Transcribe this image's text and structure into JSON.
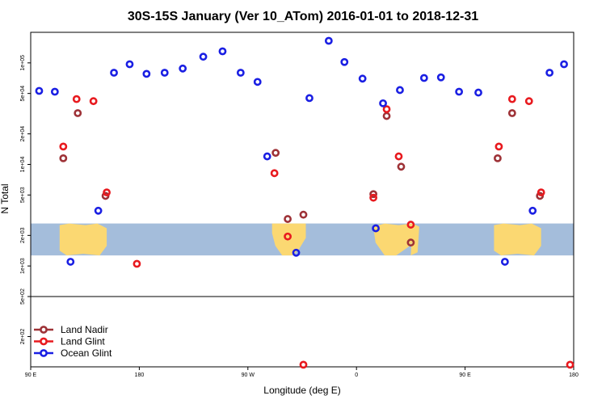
{
  "chart_data": {
    "type": "scatter",
    "title": "30S-15S January (Ver 10_ATom)   2016-01-01 to 2018-12-31",
    "xlabel": "Longitude (deg E)",
    "ylabel": "N Total",
    "x_tick_labels": [
      "90 E",
      "180",
      "90 W",
      "0",
      "90 E",
      "180"
    ],
    "x_tick_values": [
      90,
      180,
      270,
      360,
      450,
      540
    ],
    "xlim": [
      90,
      540
    ],
    "y_scale": "log",
    "main_ylim": [
      500,
      200000
    ],
    "inset_ylim": [
      100,
      500
    ],
    "y_tick_labels": [
      "1e+05",
      "5e+04",
      "2e+04",
      "1e+04",
      "5e+03",
      "2e+03",
      "1e+03",
      "5e+02"
    ],
    "y_tick_values": [
      100000,
      50000,
      20000,
      10000,
      5000,
      2000,
      1000,
      500
    ],
    "inset_y_tick_labels": [
      "2e+02"
    ],
    "inset_y_tick_values": [
      200
    ],
    "map_band": {
      "lat_range": [
        "30S",
        "15S"
      ],
      "ocean_color": "#a4bddb",
      "land_color": "#fbd872"
    },
    "legend_position": "bottom-left",
    "series": [
      {
        "name": "Land Nadir",
        "color": "#9e3237",
        "points": [
          {
            "x": 117,
            "y": 11500
          },
          {
            "x": 129,
            "y": 32000
          },
          {
            "x": 152,
            "y": 4900
          },
          {
            "x": 293,
            "y": 13000
          },
          {
            "x": 303,
            "y": 2900
          },
          {
            "x": 316,
            "y": 3200
          },
          {
            "x": 374,
            "y": 5100
          },
          {
            "x": 385,
            "y": 30000
          },
          {
            "x": 397,
            "y": 9500
          },
          {
            "x": 405,
            "y": 1700
          },
          {
            "x": 477,
            "y": 11500
          },
          {
            "x": 489,
            "y": 32000
          },
          {
            "x": 512,
            "y": 4900
          }
        ]
      },
      {
        "name": "Land Glint",
        "color": "#e81a1f",
        "points": [
          {
            "x": 117,
            "y": 15000
          },
          {
            "x": 128,
            "y": 44000
          },
          {
            "x": 142,
            "y": 42000
          },
          {
            "x": 153,
            "y": 5300
          },
          {
            "x": 178,
            "y": 1050
          },
          {
            "x": 292,
            "y": 8200
          },
          {
            "x": 303,
            "y": 1950
          },
          {
            "x": 316,
            "y": 105
          },
          {
            "x": 374,
            "y": 4700
          },
          {
            "x": 385,
            "y": 35000
          },
          {
            "x": 395,
            "y": 12000
          },
          {
            "x": 405,
            "y": 2550
          },
          {
            "x": 478,
            "y": 15000
          },
          {
            "x": 489,
            "y": 44000
          },
          {
            "x": 503,
            "y": 42000
          },
          {
            "x": 513,
            "y": 5300
          },
          {
            "x": 537,
            "y": 105
          }
        ]
      },
      {
        "name": "Ocean Glint",
        "color": "#1a1fe3",
        "points": [
          {
            "x": 97,
            "y": 53000
          },
          {
            "x": 110,
            "y": 52000
          },
          {
            "x": 123,
            "y": 1100
          },
          {
            "x": 146,
            "y": 3500
          },
          {
            "x": 159,
            "y": 80000
          },
          {
            "x": 172,
            "y": 97000
          },
          {
            "x": 186,
            "y": 78000
          },
          {
            "x": 201,
            "y": 80000
          },
          {
            "x": 216,
            "y": 88000
          },
          {
            "x": 233,
            "y": 115000
          },
          {
            "x": 249,
            "y": 130000
          },
          {
            "x": 264,
            "y": 80000
          },
          {
            "x": 278,
            "y": 65000
          },
          {
            "x": 286,
            "y": 12000
          },
          {
            "x": 310,
            "y": 1350
          },
          {
            "x": 321,
            "y": 45000
          },
          {
            "x": 337,
            "y": 165000
          },
          {
            "x": 350,
            "y": 102000
          },
          {
            "x": 365,
            "y": 70000
          },
          {
            "x": 376,
            "y": 2350
          },
          {
            "x": 382,
            "y": 40000
          },
          {
            "x": 396,
            "y": 54000
          },
          {
            "x": 416,
            "y": 71000
          },
          {
            "x": 430,
            "y": 72000
          },
          {
            "x": 445,
            "y": 52000
          },
          {
            "x": 461,
            "y": 51000
          },
          {
            "x": 483,
            "y": 1100
          },
          {
            "x": 506,
            "y": 3500
          },
          {
            "x": 520,
            "y": 80000
          },
          {
            "x": 532,
            "y": 97000
          }
        ]
      }
    ]
  }
}
